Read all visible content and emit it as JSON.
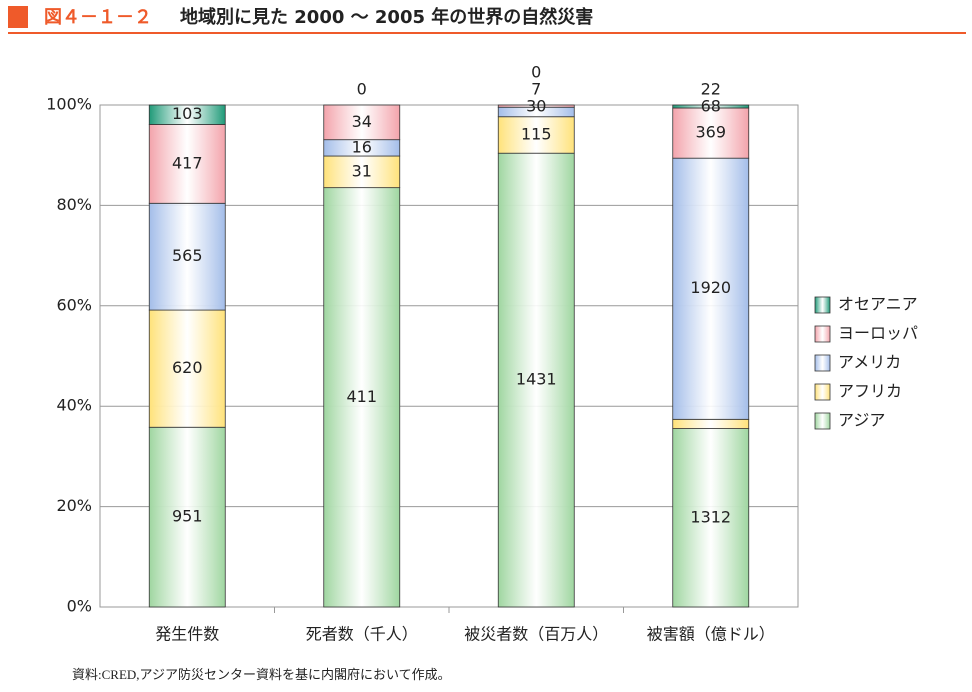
{
  "chart_data": {
    "type": "stacked_bar_percent",
    "figure_label": "図４－１－２",
    "title": "地域別に見た 2000 ～ 2005 年の世界の自然災害",
    "categories": [
      "発生件数",
      "死者数（千人）",
      "被災者数（百万人）",
      "被害額（億ドル）"
    ],
    "series": [
      {
        "name": "アジア",
        "color": "#9fd6a0",
        "values": [
          951,
          411,
          1431,
          1312
        ]
      },
      {
        "name": "アフリカ",
        "color": "#ffe27a",
        "values": [
          620,
          31,
          115,
          68
        ]
      },
      {
        "name": "アメリカ",
        "color": "#a3bde9",
        "values": [
          565,
          16,
          30,
          1920
        ]
      },
      {
        "name": "ヨーロッパ",
        "color": "#f3a3ab",
        "values": [
          417,
          34,
          7,
          369
        ]
      },
      {
        "name": "オセアニア",
        "color": "#1f9a78",
        "values": [
          103,
          0,
          0,
          22
        ]
      }
    ],
    "ylim": [
      0,
      100
    ],
    "yticks": [
      {
        "value": 0,
        "label": "0%"
      },
      {
        "value": 20,
        "label": "20%"
      },
      {
        "value": 40,
        "label": "40%"
      },
      {
        "value": 60,
        "label": "60%"
      },
      {
        "value": 80,
        "label": "80%"
      },
      {
        "value": 100,
        "label": "100%"
      }
    ],
    "grid": true,
    "legend": "right",
    "source": "資料:CRED,アジア防災センター資料を基に内閣府において作成。"
  }
}
